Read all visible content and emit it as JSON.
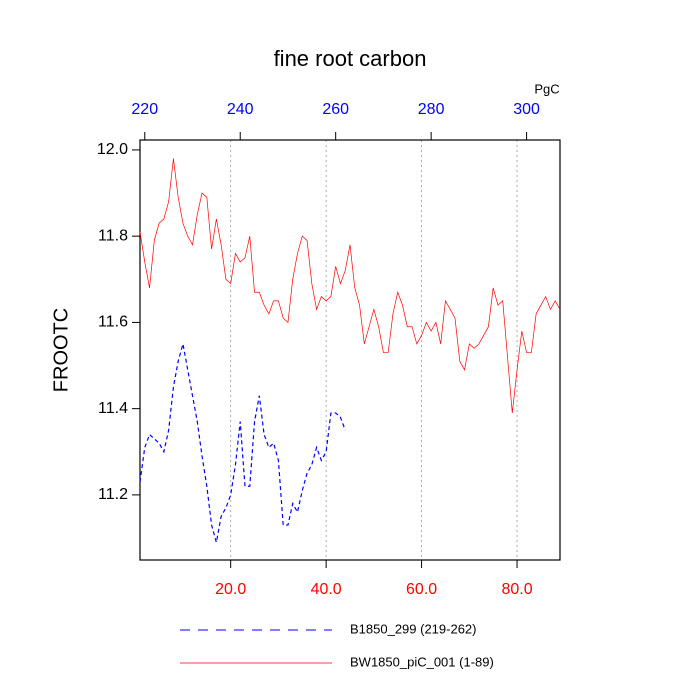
{
  "chart_data": {
    "type": "line",
    "title": "fine root carbon",
    "y_label": "FROOTC",
    "top_axis_units": "PgC",
    "x": [
      1,
      2,
      3,
      4,
      5,
      6,
      7,
      8,
      9,
      10,
      11,
      12,
      13,
      14,
      15,
      16,
      17,
      18,
      19,
      20,
      21,
      22,
      23,
      24,
      25,
      26,
      27,
      28,
      29,
      30,
      31,
      32,
      33,
      34,
      35,
      36,
      37,
      38,
      39,
      40,
      41,
      42,
      43,
      44,
      45,
      46,
      47,
      48,
      49,
      50,
      51,
      52,
      53,
      54,
      55,
      56,
      57,
      58,
      59,
      60,
      61,
      62,
      63,
      64,
      65,
      66,
      67,
      68,
      69,
      70,
      71,
      72,
      73,
      74,
      75,
      76,
      77,
      78,
      79,
      80,
      81,
      82,
      83,
      84,
      85,
      86,
      87,
      88,
      89
    ],
    "series": [
      {
        "name": "B1850_299 (219-262)",
        "color": "#0000ff",
        "dash": true,
        "values": [
          11.23,
          11.31,
          11.34,
          11.33,
          11.32,
          11.3,
          11.35,
          11.45,
          11.51,
          11.55,
          11.49,
          11.43,
          11.37,
          11.29,
          11.22,
          11.13,
          11.09,
          11.15,
          11.17,
          11.2,
          11.27,
          11.37,
          11.22,
          11.22,
          11.37,
          11.43,
          11.34,
          11.31,
          11.32,
          11.28,
          11.13,
          11.13,
          11.18,
          11.16,
          11.21,
          11.25,
          11.27,
          11.31,
          11.28,
          11.3,
          11.39,
          11.39,
          11.38,
          11.35,
          null,
          null,
          null,
          null,
          null,
          null,
          null,
          null,
          null,
          null,
          null,
          null,
          null,
          null,
          null,
          null,
          null,
          null,
          null,
          null,
          null,
          null,
          null,
          null,
          null,
          null,
          null,
          null,
          null,
          null,
          null,
          null,
          null,
          null,
          null,
          null,
          null,
          null,
          null,
          null,
          null,
          null,
          null,
          null,
          null
        ]
      },
      {
        "name": "BW1850_piC_001 (1-89)",
        "color": "#ff0000",
        "dash": false,
        "values": [
          11.81,
          11.74,
          11.68,
          11.79,
          11.83,
          11.84,
          11.88,
          11.98,
          11.89,
          11.83,
          11.8,
          11.78,
          11.85,
          11.9,
          11.89,
          11.77,
          11.84,
          11.78,
          11.7,
          11.69,
          11.76,
          11.74,
          11.75,
          11.8,
          11.67,
          11.67,
          11.64,
          11.62,
          11.65,
          11.65,
          11.61,
          11.6,
          11.7,
          11.76,
          11.8,
          11.79,
          11.69,
          11.63,
          11.66,
          11.65,
          11.66,
          11.73,
          11.69,
          11.72,
          11.78,
          11.68,
          11.64,
          11.55,
          11.59,
          11.63,
          11.59,
          11.53,
          11.53,
          11.62,
          11.67,
          11.64,
          11.59,
          11.59,
          11.55,
          11.57,
          11.6,
          11.58,
          11.6,
          11.55,
          11.65,
          11.63,
          11.61,
          11.51,
          11.49,
          11.55,
          11.54,
          11.55,
          11.57,
          11.59,
          11.68,
          11.64,
          11.65,
          11.52,
          11.39,
          11.49,
          11.58,
          11.53,
          11.53,
          11.62,
          11.64,
          11.66,
          11.63,
          11.65,
          11.63
        ]
      }
    ],
    "xlim": [
      1,
      89
    ],
    "xticks": [
      {
        "value": 20,
        "label": "20.0"
      },
      {
        "value": 40,
        "label": "40.0"
      },
      {
        "value": 60,
        "label": "60.0"
      },
      {
        "value": 80,
        "label": "80.0"
      }
    ],
    "x_tick_color": "#ff0000",
    "x2lim": [
      219,
      307
    ],
    "x2ticks": [
      220,
      240,
      260,
      280,
      300
    ],
    "x2_tick_color": "#0000ff",
    "ylim": [
      11.049,
      12.023
    ],
    "yticks": [
      11.2,
      11.4,
      11.6,
      11.8,
      {
        "value": 12,
        "label": "12.0"
      }
    ],
    "grid": true
  }
}
